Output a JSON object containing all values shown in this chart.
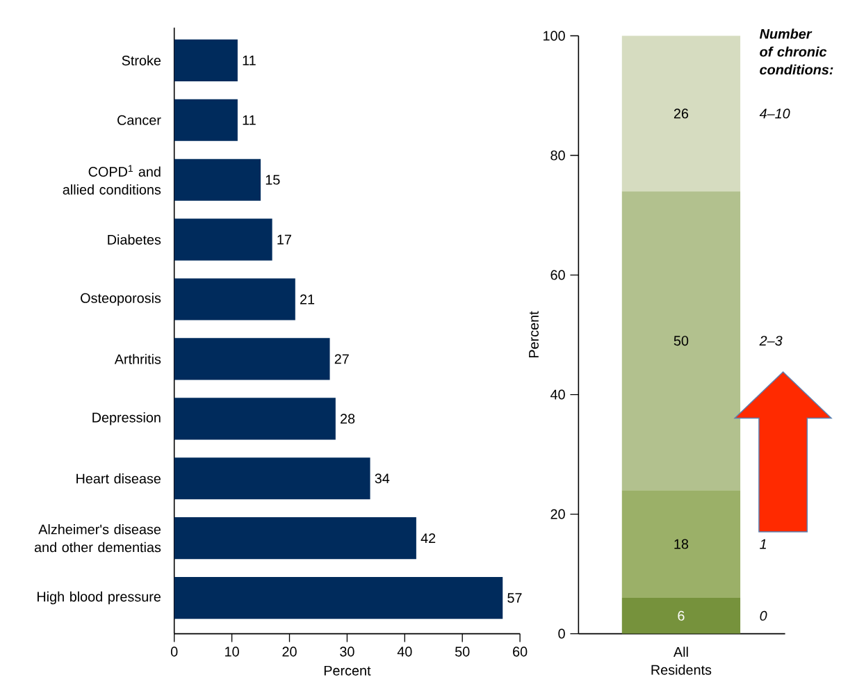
{
  "chart_data": [
    {
      "type": "bar",
      "orientation": "horizontal",
      "categories": [
        "Stroke",
        "Cancer",
        "COPD$^{1}$ and allied conditions",
        "Diabetes",
        "Osteoporosis",
        "Arthritis",
        "Depression",
        "Heart disease",
        "Alzheimer's disease and other dementias",
        "High blood pressure"
      ],
      "values": [
        11,
        11,
        15,
        17,
        21,
        27,
        28,
        34,
        42,
        57
      ],
      "color": "#002b5c",
      "xlim": [
        0,
        60
      ],
      "xticks": [
        0,
        10,
        20,
        30,
        40,
        50,
        60
      ],
      "xlabel": "Percent",
      "data_labels": true
    },
    {
      "type": "bar",
      "stacked": true,
      "categories": [
        "All Residents"
      ],
      "series": [
        {
          "name": "0",
          "color": "#76923c",
          "values": [
            6
          ]
        },
        {
          "name": "1",
          "color": "#9bb068",
          "values": [
            18
          ]
        },
        {
          "name": "2–3",
          "color": "#b2c18e",
          "values": [
            50
          ]
        },
        {
          "name": "4–10",
          "color": "#d6dcc0",
          "values": [
            26
          ]
        }
      ],
      "ylim": [
        0,
        100
      ],
      "yticks": [
        0,
        20,
        40,
        60,
        80,
        100
      ],
      "ylabel": "Percent",
      "legend_title": "Number of chronic conditions:",
      "data_labels": true
    }
  ]
}
